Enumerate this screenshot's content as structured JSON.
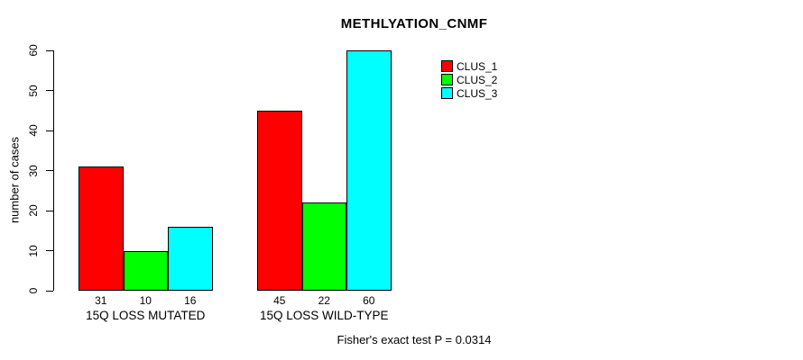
{
  "annotation": "Fisher's exact test P = 0.0314",
  "chart_data": {
    "type": "bar",
    "title": "METHLYATION_CNMF",
    "xlabel": "",
    "ylabel": "number of cases",
    "ylim": [
      0,
      60
    ],
    "yticks": [
      0,
      10,
      20,
      30,
      40,
      50,
      60
    ],
    "categories": [
      "15Q LOSS MUTATED",
      "15Q LOSS WILD-TYPE"
    ],
    "series": [
      {
        "name": "CLUS_1",
        "color": "#ff0000",
        "values": [
          31,
          45
        ]
      },
      {
        "name": "CLUS_2",
        "color": "#00ff00",
        "values": [
          10,
          22
        ]
      },
      {
        "name": "CLUS_3",
        "color": "#00ffff",
        "values": [
          16,
          60
        ]
      }
    ],
    "bar_value_labels": [
      [
        31,
        10,
        16
      ],
      [
        45,
        22,
        60
      ]
    ],
    "legend_position": "top-right",
    "grid": false,
    "background": "#ffffff"
  }
}
